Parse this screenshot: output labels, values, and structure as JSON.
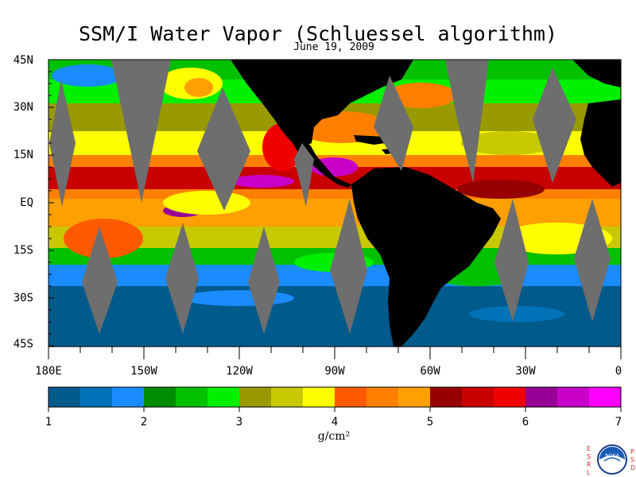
{
  "title": "SSM/I Water Vapor (Schluessel algorithm)",
  "date": "June 19, 2009",
  "latitude_labels": [
    "45N",
    "30N",
    "15N",
    "EQ",
    "15S",
    "30S",
    "45S"
  ],
  "longitude_labels": [
    "180E",
    "150W",
    "120W",
    "90W",
    "60W",
    "30W",
    "0"
  ],
  "colorbar": {
    "tick_labels": [
      "1",
      "2",
      "3",
      "4",
      "5",
      "6",
      "7"
    ],
    "units": "g/cm²",
    "range": [
      1,
      7
    ],
    "colors": [
      "#005a8c",
      "#0073b8",
      "#1a8cff",
      "#008c00",
      "#00c000",
      "#00f000",
      "#999900",
      "#c8c800",
      "#ffff00",
      "#ff5a00",
      "#ff8000",
      "#ffa000",
      "#960000",
      "#c80000",
      "#f00000",
      "#960096",
      "#c800c8",
      "#ff00ff"
    ]
  },
  "colors": {
    "land": "#000000",
    "no_data_swath_gap": "#6e6e6e"
  },
  "logo": {
    "left_letters": [
      "E",
      "S",
      "R",
      "L"
    ],
    "right_letters": [
      "P",
      "S",
      "D"
    ],
    "center_text": "NOAA"
  }
}
